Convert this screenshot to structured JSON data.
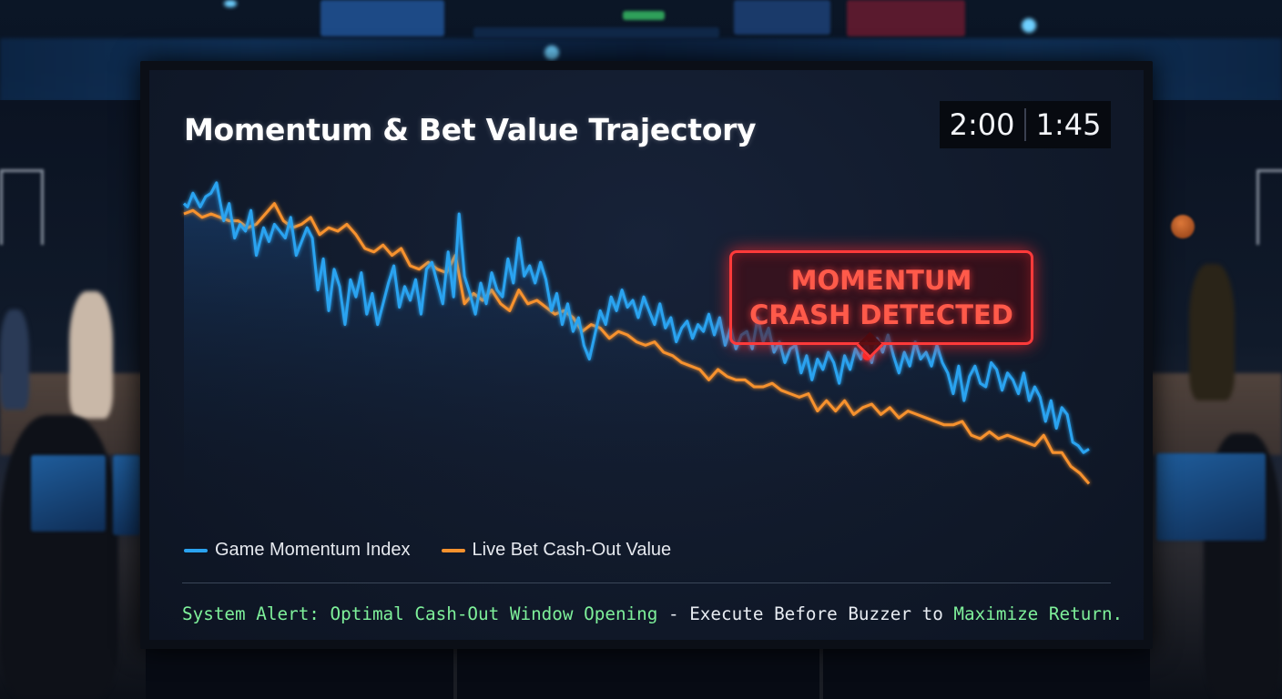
{
  "chart_data": {
    "type": "line",
    "title": "Momentum & Bet Value Trajectory",
    "xlabel": "",
    "ylabel": "",
    "grid": false,
    "legend": "bottom-left",
    "series": [
      {
        "name": "Game Momentum Index",
        "color": "#2aa3f0",
        "x": [
          0,
          0.004,
          0.01,
          0.018,
          0.024,
          0.03,
          0.036,
          0.044,
          0.05,
          0.056,
          0.062,
          0.068,
          0.074,
          0.08,
          0.088,
          0.094,
          0.1,
          0.106,
          0.112,
          0.118,
          0.124,
          0.13,
          0.136,
          0.142,
          0.148,
          0.154,
          0.16,
          0.166,
          0.172,
          0.178,
          0.184,
          0.19,
          0.196,
          0.202,
          0.208,
          0.214,
          0.22,
          0.226,
          0.232,
          0.238,
          0.244,
          0.25,
          0.256,
          0.262,
          0.268,
          0.274,
          0.28,
          0.286,
          0.292,
          0.298,
          0.304,
          0.31,
          0.316,
          0.322,
          0.328,
          0.334,
          0.34,
          0.346,
          0.352,
          0.358,
          0.364,
          0.37,
          0.376,
          0.382,
          0.388,
          0.394,
          0.4,
          0.406,
          0.412,
          0.418,
          0.424,
          0.43,
          0.436,
          0.442,
          0.448,
          0.454,
          0.46,
          0.466,
          0.472,
          0.478,
          0.484,
          0.49,
          0.496,
          0.502,
          0.508,
          0.514,
          0.52,
          0.526,
          0.532,
          0.538,
          0.544,
          0.55,
          0.556,
          0.562,
          0.568,
          0.574,
          0.58,
          0.586,
          0.592,
          0.598,
          0.604,
          0.61,
          0.616,
          0.622,
          0.628,
          0.634,
          0.64,
          0.646,
          0.652,
          0.658,
          0.664,
          0.67,
          0.676,
          0.682,
          0.688,
          0.694,
          0.7,
          0.706,
          0.712,
          0.718,
          0.724,
          0.73,
          0.736,
          0.742,
          0.748,
          0.754,
          0.76,
          0.766,
          0.772,
          0.778,
          0.784,
          0.79,
          0.796,
          0.802,
          0.808,
          0.814,
          0.82,
          0.826,
          0.832,
          0.838,
          0.844,
          0.85,
          0.856,
          0.862,
          0.868,
          0.874,
          0.88,
          0.886,
          0.892,
          0.898,
          0.904,
          0.91,
          0.916,
          0.922,
          0.928,
          0.934,
          0.94,
          0.946,
          0.952,
          0.958,
          0.964,
          0.97,
          0.976,
          0.982,
          0.988,
          0.994,
          1.0
        ],
        "values": [
          0.93,
          0.92,
          0.96,
          0.92,
          0.95,
          0.96,
          0.99,
          0.88,
          0.93,
          0.83,
          0.87,
          0.85,
          0.91,
          0.78,
          0.86,
          0.82,
          0.87,
          0.85,
          0.83,
          0.89,
          0.78,
          0.82,
          0.86,
          0.83,
          0.68,
          0.77,
          0.62,
          0.74,
          0.69,
          0.58,
          0.71,
          0.66,
          0.73,
          0.61,
          0.67,
          0.58,
          0.64,
          0.7,
          0.75,
          0.63,
          0.69,
          0.65,
          0.71,
          0.61,
          0.74,
          0.76,
          0.7,
          0.64,
          0.79,
          0.66,
          0.9,
          0.72,
          0.67,
          0.61,
          0.7,
          0.64,
          0.73,
          0.68,
          0.66,
          0.77,
          0.7,
          0.83,
          0.72,
          0.75,
          0.7,
          0.76,
          0.71,
          0.62,
          0.67,
          0.58,
          0.64,
          0.56,
          0.6,
          0.52,
          0.48,
          0.55,
          0.62,
          0.58,
          0.66,
          0.62,
          0.68,
          0.63,
          0.65,
          0.6,
          0.66,
          0.62,
          0.58,
          0.64,
          0.57,
          0.6,
          0.53,
          0.57,
          0.59,
          0.54,
          0.58,
          0.56,
          0.61,
          0.55,
          0.6,
          0.52,
          0.57,
          0.51,
          0.55,
          0.56,
          0.51,
          0.6,
          0.53,
          0.57,
          0.5,
          0.53,
          0.47,
          0.51,
          0.52,
          0.44,
          0.49,
          0.42,
          0.48,
          0.45,
          0.5,
          0.47,
          0.41,
          0.49,
          0.45,
          0.51,
          0.48,
          0.53,
          0.47,
          0.54,
          0.5,
          0.55,
          0.49,
          0.44,
          0.5,
          0.46,
          0.53,
          0.48,
          0.5,
          0.46,
          0.52,
          0.47,
          0.44,
          0.38,
          0.46,
          0.36,
          0.43,
          0.46,
          0.41,
          0.4,
          0.47,
          0.45,
          0.39,
          0.44,
          0.42,
          0.38,
          0.44,
          0.36,
          0.4,
          0.37,
          0.3,
          0.36,
          0.28,
          0.34,
          0.32,
          0.24,
          0.23,
          0.21,
          0.22
        ],
        "note": ""
      },
      {
        "name": "Live Bet Cash-Out Value",
        "color": "#f7922e",
        "x": [
          0,
          0.01,
          0.02,
          0.03,
          0.04,
          0.05,
          0.06,
          0.07,
          0.08,
          0.09,
          0.1,
          0.11,
          0.12,
          0.13,
          0.14,
          0.15,
          0.16,
          0.17,
          0.18,
          0.19,
          0.2,
          0.21,
          0.22,
          0.23,
          0.24,
          0.25,
          0.26,
          0.27,
          0.28,
          0.29,
          0.3,
          0.31,
          0.32,
          0.33,
          0.34,
          0.35,
          0.36,
          0.37,
          0.38,
          0.39,
          0.4,
          0.41,
          0.42,
          0.43,
          0.44,
          0.45,
          0.46,
          0.47,
          0.48,
          0.49,
          0.5,
          0.51,
          0.52,
          0.53,
          0.54,
          0.55,
          0.56,
          0.57,
          0.58,
          0.59,
          0.6,
          0.61,
          0.62,
          0.63,
          0.64,
          0.65,
          0.66,
          0.67,
          0.68,
          0.69,
          0.7,
          0.71,
          0.72,
          0.73,
          0.74,
          0.75,
          0.76,
          0.77,
          0.78,
          0.79,
          0.8,
          0.81,
          0.82,
          0.83,
          0.84,
          0.85,
          0.86,
          0.87,
          0.88,
          0.89,
          0.9,
          0.91,
          0.92,
          0.93,
          0.94,
          0.95,
          0.96,
          0.97,
          0.98,
          0.99,
          1.0
        ],
        "values": [
          0.9,
          0.91,
          0.89,
          0.9,
          0.89,
          0.88,
          0.88,
          0.86,
          0.87,
          0.9,
          0.93,
          0.88,
          0.86,
          0.87,
          0.89,
          0.84,
          0.86,
          0.85,
          0.87,
          0.84,
          0.8,
          0.79,
          0.81,
          0.78,
          0.8,
          0.75,
          0.74,
          0.76,
          0.74,
          0.73,
          0.78,
          0.64,
          0.67,
          0.65,
          0.68,
          0.64,
          0.62,
          0.68,
          0.64,
          0.65,
          0.63,
          0.61,
          0.62,
          0.6,
          0.56,
          0.58,
          0.57,
          0.54,
          0.56,
          0.55,
          0.53,
          0.52,
          0.53,
          0.5,
          0.49,
          0.47,
          0.46,
          0.45,
          0.42,
          0.45,
          0.43,
          0.42,
          0.42,
          0.4,
          0.4,
          0.41,
          0.39,
          0.38,
          0.37,
          0.38,
          0.33,
          0.36,
          0.33,
          0.36,
          0.32,
          0.34,
          0.35,
          0.32,
          0.34,
          0.31,
          0.33,
          0.32,
          0.31,
          0.3,
          0.29,
          0.29,
          0.3,
          0.26,
          0.25,
          0.27,
          0.25,
          0.26,
          0.25,
          0.24,
          0.23,
          0.26,
          0.21,
          0.21,
          0.17,
          0.15,
          0.12
        ]
      }
    ],
    "annotation": {
      "line1": "MOMENTUM",
      "line2": "CRASH DETECTED",
      "x": 0.755,
      "y": 0.49,
      "color": "#ff3a3a"
    }
  },
  "timer": {
    "left": "2:00",
    "right": "1:45"
  },
  "footer": {
    "hl1": "System Alert: Optimal Cash-Out Window Opening",
    "plain": " - Execute Before Buzzer to ",
    "hl2": "Maximize Return.",
    "highlight_color": "#7ef09a"
  }
}
